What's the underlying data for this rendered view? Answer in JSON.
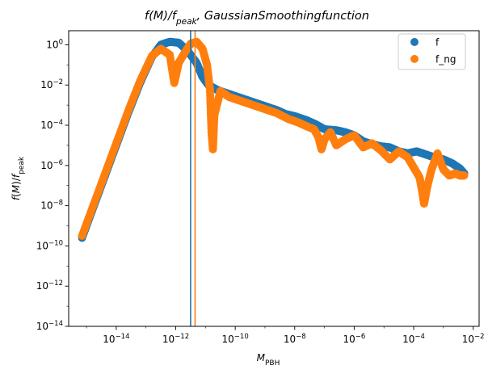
{
  "chart_data": {
    "type": "scatter",
    "title": "f(M)/f_peak, GaussianSmoothingfunction",
    "xlabel": "M_PBH",
    "ylabel": "f(M)/f_peak",
    "xscale": "log",
    "yscale": "log",
    "xlim_log10": [
      -15.6,
      -1.8
    ],
    "ylim_log10": [
      -14,
      0.7
    ],
    "x_tick_labels": [
      "10^-14",
      "10^-12",
      "10^-10",
      "10^-8",
      "10^-6",
      "10^-4",
      "10^-2"
    ],
    "y_tick_labels": [
      "10^-14",
      "10^-12",
      "10^-10",
      "10^-8",
      "10^-6",
      "10^-4",
      "10^-2",
      "10^0"
    ],
    "legend": {
      "position": "top-right",
      "entries": [
        "f",
        "f_ng"
      ]
    },
    "vertical_lines": [
      {
        "series": "f",
        "x_log10": -11.5,
        "color": "#1f77b4"
      },
      {
        "series": "f_ng",
        "x_log10": -11.35,
        "color": "#ff7f0e"
      }
    ],
    "series": [
      {
        "name": "f",
        "color": "#1f77b4",
        "points_log10": [
          [
            -15.15,
            -9.6
          ],
          [
            -14.8,
            -8.2
          ],
          [
            -14.4,
            -6.6
          ],
          [
            -14.0,
            -5.0
          ],
          [
            -13.6,
            -3.4
          ],
          [
            -13.2,
            -1.9
          ],
          [
            -12.8,
            -0.6
          ],
          [
            -12.5,
            0.0
          ],
          [
            -12.2,
            0.15
          ],
          [
            -11.9,
            0.1
          ],
          [
            -11.6,
            -0.3
          ],
          [
            -11.3,
            -0.9
          ],
          [
            -11.1,
            -1.6
          ],
          [
            -10.9,
            -2.0
          ],
          [
            -10.6,
            -2.25
          ],
          [
            -10.2,
            -2.45
          ],
          [
            -9.8,
            -2.65
          ],
          [
            -9.4,
            -2.85
          ],
          [
            -9.0,
            -3.05
          ],
          [
            -8.6,
            -3.25
          ],
          [
            -8.3,
            -3.45
          ],
          [
            -8.0,
            -3.55
          ],
          [
            -7.6,
            -3.75
          ],
          [
            -7.3,
            -3.95
          ],
          [
            -7.0,
            -4.2
          ],
          [
            -6.6,
            -4.25
          ],
          [
            -6.3,
            -4.35
          ],
          [
            -6.0,
            -4.5
          ],
          [
            -5.7,
            -4.8
          ],
          [
            -5.4,
            -4.95
          ],
          [
            -5.1,
            -5.05
          ],
          [
            -4.8,
            -5.1
          ],
          [
            -4.5,
            -5.3
          ],
          [
            -4.2,
            -5.4
          ],
          [
            -3.9,
            -5.3
          ],
          [
            -3.6,
            -5.45
          ],
          [
            -3.3,
            -5.6
          ],
          [
            -3.0,
            -5.7
          ],
          [
            -2.7,
            -5.9
          ],
          [
            -2.45,
            -6.15
          ],
          [
            -2.3,
            -6.4
          ]
        ]
      },
      {
        "name": "f_ng",
        "color": "#ff7f0e",
        "points_log10": [
          [
            -15.15,
            -9.5
          ],
          [
            -14.8,
            -8.1
          ],
          [
            -14.4,
            -6.5
          ],
          [
            -14.0,
            -4.9
          ],
          [
            -13.6,
            -3.3
          ],
          [
            -13.2,
            -1.8
          ],
          [
            -12.8,
            -0.55
          ],
          [
            -12.5,
            -0.2
          ],
          [
            -12.2,
            -0.5
          ],
          [
            -12.05,
            -1.9
          ],
          [
            -11.9,
            -0.9
          ],
          [
            -11.7,
            -0.4
          ],
          [
            -11.5,
            0.05
          ],
          [
            -11.3,
            0.15
          ],
          [
            -11.1,
            -0.2
          ],
          [
            -10.95,
            -1.0
          ],
          [
            -10.85,
            -2.2
          ],
          [
            -10.8,
            -4.3
          ],
          [
            -10.75,
            -5.2
          ],
          [
            -10.7,
            -3.5
          ],
          [
            -10.5,
            -2.3
          ],
          [
            -10.2,
            -2.6
          ],
          [
            -9.8,
            -2.8
          ],
          [
            -9.4,
            -3.0
          ],
          [
            -9.0,
            -3.2
          ],
          [
            -8.6,
            -3.4
          ],
          [
            -8.2,
            -3.7
          ],
          [
            -7.9,
            -3.85
          ],
          [
            -7.6,
            -4.05
          ],
          [
            -7.35,
            -4.2
          ],
          [
            -7.2,
            -4.6
          ],
          [
            -7.1,
            -5.2
          ],
          [
            -7.0,
            -4.7
          ],
          [
            -6.8,
            -4.35
          ],
          [
            -6.6,
            -5.0
          ],
          [
            -6.3,
            -4.7
          ],
          [
            -6.0,
            -4.5
          ],
          [
            -5.7,
            -5.1
          ],
          [
            -5.4,
            -4.9
          ],
          [
            -5.1,
            -5.25
          ],
          [
            -4.8,
            -5.7
          ],
          [
            -4.5,
            -5.3
          ],
          [
            -4.2,
            -5.6
          ],
          [
            -4.0,
            -6.1
          ],
          [
            -3.8,
            -6.6
          ],
          [
            -3.7,
            -7.4
          ],
          [
            -3.65,
            -7.9
          ],
          [
            -3.55,
            -7.1
          ],
          [
            -3.4,
            -6.2
          ],
          [
            -3.2,
            -5.4
          ],
          [
            -3.0,
            -6.2
          ],
          [
            -2.8,
            -6.5
          ],
          [
            -2.6,
            -6.4
          ],
          [
            -2.45,
            -6.5
          ],
          [
            -2.3,
            -6.5
          ]
        ]
      }
    ]
  }
}
